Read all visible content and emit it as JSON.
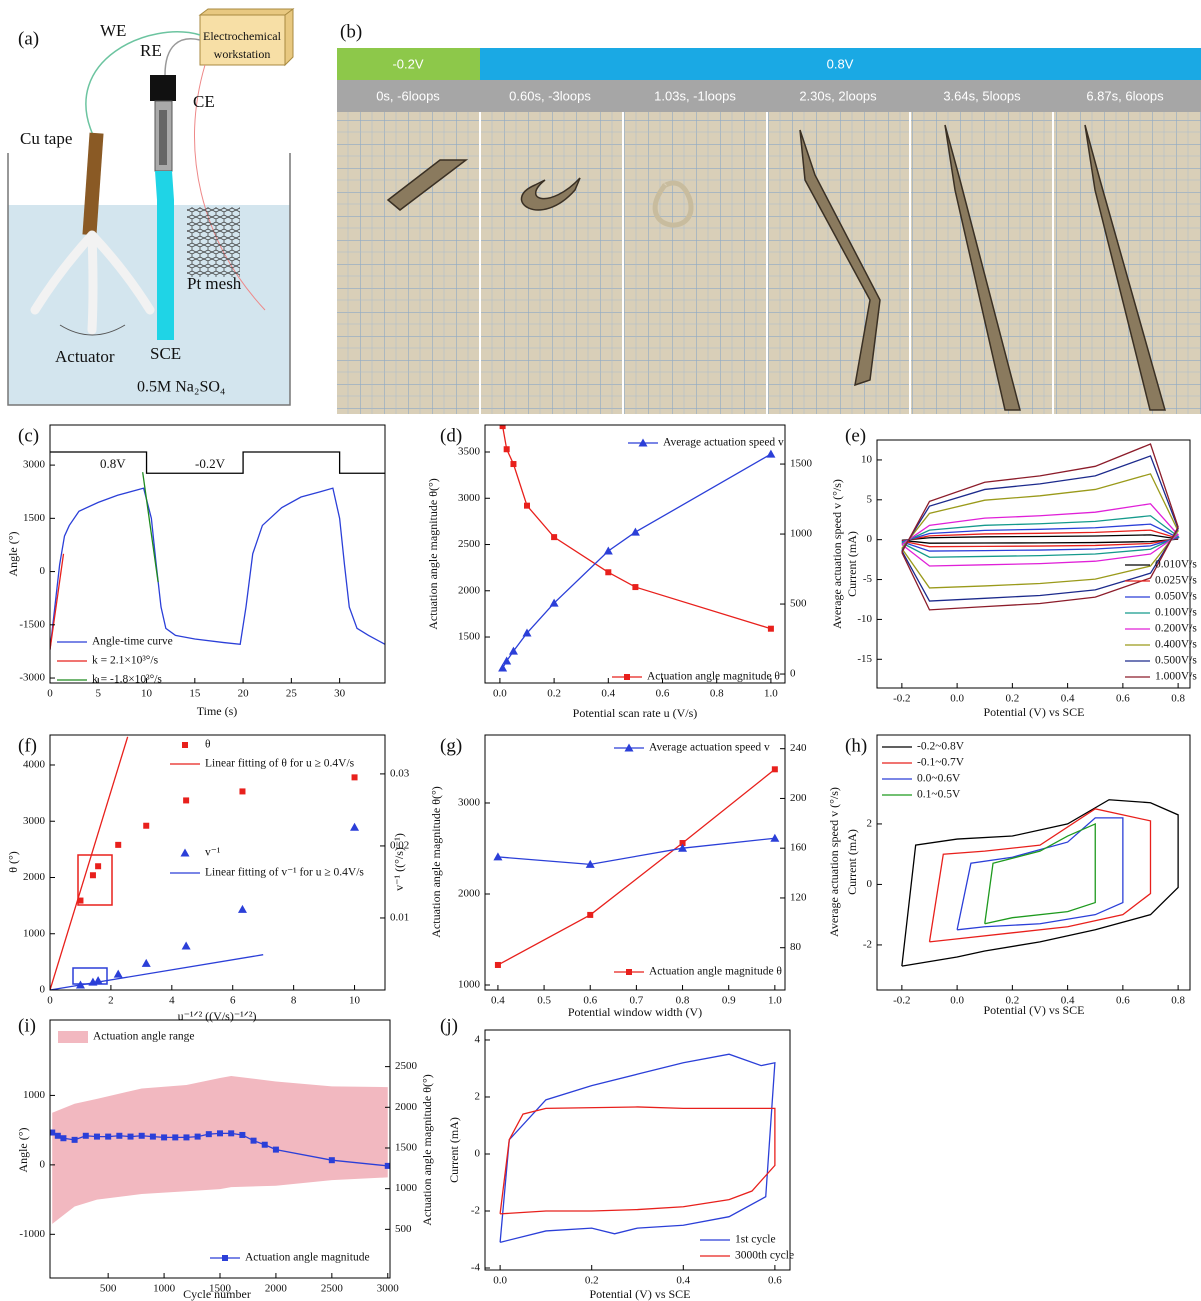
{
  "diagram_a": {
    "panel": "(a)",
    "we": "WE",
    "re": "RE",
    "ce": "CE",
    "workstation": [
      "Electrochemical",
      "workstation"
    ],
    "cu_tape": "Cu tape",
    "pt_mesh": "Pt mesh",
    "actuator": "Actuator",
    "sce": "SCE",
    "electrolyte": "0.5M Na₂SO₄"
  },
  "photo_b": {
    "panel": "(b)",
    "potentials": [
      "-0.2V",
      "0.8V"
    ],
    "frames": [
      "0s, -6loops",
      "0.60s, -3loops",
      "1.03s, -1loops",
      "2.30s, 2loops",
      "3.64s, 5loops",
      "6.87s, 6loops"
    ]
  },
  "chart_data": [
    {
      "type": "line",
      "panel": "(c)",
      "xlabel": "Time (s)",
      "ylabel": "Angle (°)",
      "annotations": [
        "0.8V",
        "-0.2V"
      ],
      "xlim": [
        0,
        34.7
      ],
      "ylim": [
        -3140,
        4130
      ],
      "xticks": [
        0,
        5,
        10,
        15,
        20,
        25,
        30
      ],
      "yticks": [
        -3000,
        -1500,
        0,
        1500,
        3000
      ],
      "series": [
        {
          "color": "#000000",
          "mode": "lines",
          "x": [
            0,
            10,
            10,
            20,
            20,
            30,
            30,
            34.7
          ],
          "values": [
            3370,
            3370,
            2770,
            2770,
            3370,
            3370,
            2770,
            2770
          ]
        },
        {
          "name": "Angle-time curve",
          "color": "#2b3fd8",
          "mode": "lines",
          "x": [
            0,
            0.5,
            1,
            1.5,
            2,
            3,
            5,
            7,
            9,
            9.7,
            10.5,
            11,
            11.5,
            12,
            13,
            15,
            18,
            19.7,
            20.3,
            21,
            22,
            24,
            26,
            28,
            29.3,
            30,
            30.5,
            31,
            31.8,
            33,
            34.7
          ],
          "values": [
            -2200,
            -1000,
            200,
            1000,
            1300,
            1700,
            1950,
            2150,
            2300,
            2350,
            1500,
            200,
            -1000,
            -1600,
            -1800,
            -1900,
            -2000,
            -2050,
            -1000,
            500,
            1300,
            1800,
            2100,
            2250,
            2350,
            1500,
            200,
            -1000,
            -1600,
            -1800,
            -2050
          ]
        },
        {
          "name": "k = 2.1×10³°/s",
          "color": "#e8201c",
          "mode": "lines",
          "x": [
            0,
            1.4
          ],
          "values": [
            -2200,
            500
          ]
        },
        {
          "name": "k = -1.8×10³°/s",
          "color": "#1e8a1e",
          "mode": "lines",
          "x": [
            9.6,
            11.2
          ],
          "values": [
            2800,
            -300
          ]
        }
      ]
    },
    {
      "type": "line",
      "panel": "(d)",
      "xlabel": "Potential scan rate u (V/s)",
      "ylabel": "Actuation angle magnitude θ(°)",
      "y2label": "Average actuation speed v (°/s)",
      "xlim": [
        -0.055,
        1.052
      ],
      "ylim": [
        1003,
        3792
      ],
      "y2lim": [
        -64,
        1779
      ],
      "xticks": [
        {
          "value": 0,
          "label": "0.0"
        },
        0.2,
        0.4,
        0.6,
        0.8,
        {
          "value": 1,
          "label": "1.0"
        }
      ],
      "yticks": [
        1500,
        2000,
        2500,
        3000,
        3500
      ],
      "y2ticks": [
        0,
        500,
        1000,
        1500
      ],
      "x": [
        0.01,
        0.025,
        0.05,
        0.1,
        0.2,
        0.4,
        0.5,
        1.0
      ],
      "series": [
        {
          "name": "Actuation angle magnitude θ",
          "color": "#e8201c",
          "mode": "lines+markers",
          "marker": "square",
          "values": [
            3780,
            3530,
            3370,
            2920,
            2580,
            2200,
            2040,
            1590
          ]
        },
        {
          "name": "Average actuation speed v",
          "color": "#2b3fd8",
          "mode": "lines+markers",
          "marker": "triangle",
          "axis": "y2",
          "values": [
            43,
            93,
            164,
            293,
            507,
            879,
            1014,
            1571
          ]
        }
      ]
    },
    {
      "type": "line",
      "panel": "(e)",
      "xlabel": "Potential (V) vs SCE",
      "ylabel": "Current (mA)",
      "xlim": [
        -0.29,
        0.843
      ],
      "ylim": [
        -18.6,
        12.5
      ],
      "xticks": [
        -0.2,
        {
          "value": 0,
          "label": "0.0"
        },
        0.2,
        0.4,
        0.6,
        0.8
      ],
      "yticks": [
        -15,
        -10,
        -5,
        0,
        5,
        10
      ],
      "x": [
        -0.2,
        -0.1,
        0.1,
        0.3,
        0.5,
        0.7,
        0.8,
        0.7,
        0.5,
        0.3,
        0.1,
        -0.1,
        -0.2
      ],
      "series": [
        {
          "name": "0.010V/s",
          "color": "#000000",
          "mode": "lines",
          "values": [
            -0.08,
            0.24,
            0.36,
            0.4,
            0.46,
            0.6,
            0.08,
            -0.24,
            -0.36,
            -0.4,
            -0.42,
            -0.44,
            -0.08
          ]
        },
        {
          "name": "0.025V/s",
          "color": "#e8201c",
          "mode": "lines",
          "values": [
            -0.16,
            0.48,
            0.72,
            0.8,
            0.92,
            1.2,
            0.16,
            -0.48,
            -0.72,
            -0.8,
            -0.84,
            -0.88,
            -0.16
          ]
        },
        {
          "name": "0.050V/s",
          "color": "#2b3fd8",
          "mode": "lines",
          "values": [
            -0.26,
            0.78,
            1.17,
            1.3,
            1.5,
            1.95,
            0.26,
            -0.78,
            -1.17,
            -1.3,
            -1.37,
            -1.43,
            -0.26
          ]
        },
        {
          "name": "0.100V/s",
          "color": "#159a8c",
          "mode": "lines",
          "values": [
            -0.4,
            1.2,
            1.8,
            2,
            2.3,
            3,
            0.4,
            -1.2,
            -1.8,
            -2,
            -2.1,
            -2.2,
            -0.4
          ]
        },
        {
          "name": "0.200V/s",
          "color": "#e020d8",
          "mode": "lines",
          "values": [
            -0.6,
            1.8,
            2.7,
            3,
            3.45,
            4.5,
            0.6,
            -1.8,
            -2.7,
            -3,
            -3.15,
            -3.3,
            -0.6
          ]
        },
        {
          "name": "0.400V/s",
          "color": "#9a9a1a",
          "mode": "lines",
          "values": [
            -1.1,
            3.3,
            4.95,
            5.5,
            6.3,
            8.25,
            1.1,
            -3.3,
            -4.95,
            -5.5,
            -5.8,
            -6.05,
            -1.1
          ]
        },
        {
          "name": "0.500V/s",
          "color": "#1c2a8c",
          "mode": "lines",
          "values": [
            -1.4,
            4.2,
            6.3,
            7,
            8,
            10.5,
            1.4,
            -4.2,
            -6.3,
            -7,
            -7.35,
            -7.7,
            -1.4
          ]
        },
        {
          "name": "1.000V/s",
          "color": "#8c1c2a",
          "mode": "lines",
          "values": [
            -1.6,
            4.8,
            7.2,
            8,
            9.2,
            12,
            1.6,
            -4.8,
            -7.2,
            -8,
            -8.4,
            -8.8,
            -1.6
          ]
        }
      ]
    },
    {
      "type": "scatter",
      "panel": "(f)",
      "xlabel": "u⁻¹ᐟ² ((V/s)⁻¹ᐟ²)",
      "ylabel": "θ (°)",
      "y2label": "v⁻¹ ((°/s)⁻¹)",
      "xlim": [
        0,
        11
      ],
      "ylim": [
        0,
        4533
      ],
      "y2lim": [
        0,
        0.0354
      ],
      "xticks": [
        0,
        2,
        4,
        6,
        8,
        10
      ],
      "yticks": [
        0,
        1000,
        2000,
        3000,
        4000
      ],
      "y2ticks": [
        0.01,
        0.02,
        0.03
      ],
      "x": [
        10,
        6.32,
        4.47,
        3.16,
        2.24,
        1.58,
        1.41,
        1.0
      ],
      "series": [
        {
          "name": "θ",
          "color": "#e8201c",
          "mode": "markers",
          "marker": "square",
          "values": [
            3780,
            3530,
            3370,
            2920,
            2580,
            2200,
            2040,
            1590
          ]
        },
        {
          "name": "Linear fitting of θ for u ≥ 0.4V/s",
          "color": "#e8201c",
          "mode": "lines",
          "x": [
            0,
            2.55
          ],
          "values": [
            0,
            4500
          ]
        },
        {
          "name": "v⁻¹",
          "color": "#2b3fd8",
          "mode": "markers",
          "marker": "triangle",
          "axis": "y2",
          "values": [
            0.0226,
            0.0112,
            0.0061,
            0.0037,
            0.0022,
            0.0013,
            0.0011,
            0.0007
          ]
        },
        {
          "name": "Linear fitting of v⁻¹ for u ≥ 0.4V/s",
          "color": "#2b3fd8",
          "mode": "lines",
          "axis": "y2",
          "x": [
            0,
            7
          ],
          "values": [
            0,
            0.0049
          ]
        }
      ]
    },
    {
      "type": "line",
      "panel": "(g)",
      "xlabel": "Potential window width (V)",
      "ylabel": "Actuation angle magnitude θ(°)",
      "y2label": "Average actuation speed v (°/s)",
      "xlim": [
        0.372,
        1.022
      ],
      "ylim": [
        945,
        3747
      ],
      "y2lim": [
        46,
        251
      ],
      "xticks": [
        0.4,
        0.5,
        0.6,
        0.7,
        0.8,
        0.9,
        {
          "value": 1,
          "label": "1.0"
        }
      ],
      "yticks": [
        1000,
        2000,
        3000
      ],
      "y2ticks": [
        80,
        120,
        160,
        200,
        240
      ],
      "x": [
        0.4,
        0.6,
        0.8,
        1.0
      ],
      "series": [
        {
          "name": "Actuation angle magnitude θ",
          "color": "#e8201c",
          "mode": "lines+markers",
          "marker": "square",
          "values": [
            1220,
            1770,
            2560,
            3370
          ]
        },
        {
          "name": "Average actuation speed v",
          "color": "#2b3fd8",
          "mode": "lines+markers",
          "marker": "triangle",
          "axis": "y2",
          "values": [
            153,
            147,
            160,
            168
          ]
        }
      ]
    },
    {
      "type": "line",
      "panel": "(h)",
      "xlabel": "Potential (V) vs SCE",
      "ylabel": "Current (mA)",
      "xlim": [
        -0.29,
        0.843
      ],
      "ylim": [
        -3.49,
        4.94
      ],
      "xticks": [
        -0.2,
        {
          "value": 0,
          "label": "0.0"
        },
        0.2,
        0.4,
        0.6,
        0.8
      ],
      "yticks": [
        -2,
        0,
        2
      ],
      "series": [
        {
          "name": "-0.2~0.8V",
          "color": "#000000",
          "mode": "lines",
          "x": [
            -0.2,
            -0.15,
            0,
            0.2,
            0.4,
            0.55,
            0.7,
            0.8,
            0.8,
            0.7,
            0.5,
            0.3,
            0.1,
            0,
            -0.2
          ],
          "values": [
            -2.7,
            1.3,
            1.5,
            1.6,
            2.0,
            2.8,
            2.7,
            2.3,
            -0.1,
            -1.0,
            -1.5,
            -1.9,
            -2.2,
            -2.4,
            -2.7
          ]
        },
        {
          "name": "-0.1~0.7V",
          "color": "#e8201c",
          "mode": "lines",
          "x": [
            -0.1,
            -0.05,
            0.1,
            0.3,
            0.5,
            0.6,
            0.7,
            0.7,
            0.6,
            0.4,
            0.2,
            0,
            -0.1
          ],
          "values": [
            -1.9,
            1.0,
            1.1,
            1.3,
            2.5,
            2.3,
            2.1,
            -0.3,
            -1.0,
            -1.4,
            -1.6,
            -1.8,
            -1.9
          ]
        },
        {
          "name": "0.0~0.6V",
          "color": "#2b3fd8",
          "mode": "lines",
          "x": [
            0,
            0.05,
            0.2,
            0.4,
            0.5,
            0.6,
            0.6,
            0.5,
            0.3,
            0.1,
            0
          ],
          "values": [
            -1.5,
            0.7,
            0.9,
            1.4,
            2.2,
            2.2,
            -0.6,
            -1.0,
            -1.3,
            -1.4,
            -1.5
          ]
        },
        {
          "name": "0.1~0.5V",
          "color": "#1e9a1e",
          "mode": "lines",
          "x": [
            0.1,
            0.13,
            0.3,
            0.4,
            0.5,
            0.5,
            0.4,
            0.2,
            0.1
          ],
          "values": [
            -1.3,
            0.7,
            1.1,
            1.6,
            2.0,
            -0.6,
            -0.9,
            -1.1,
            -1.3
          ]
        }
      ]
    },
    {
      "type": "line",
      "panel": "(i)",
      "xlabel": "Cycle number",
      "ylabel": "Angle (°)",
      "y2label": "Actuation angle magnitude θ(°)",
      "xlim": [
        -20,
        3020
      ],
      "ylim": [
        -1629,
        2086
      ],
      "y2lim": [
        -98,
        3073
      ],
      "xticks": [
        500,
        1000,
        1500,
        2000,
        2500,
        3000
      ],
      "yticks": [
        -1000,
        0,
        1000
      ],
      "y2ticks": [
        500,
        1000,
        1500,
        2000,
        2500
      ],
      "series": [
        {
          "name": "Actuation angle range",
          "color": "#f2b8c0",
          "mode": "area",
          "x": [
            0,
            200,
            400,
            800,
            1200,
            1500,
            1600,
            2000,
            2500,
            3000
          ],
          "upper": [
            750,
            880,
            950,
            1100,
            1150,
            1250,
            1280,
            1200,
            1130,
            1120
          ],
          "lower": [
            -850,
            -600,
            -500,
            -420,
            -380,
            -350,
            -320,
            -300,
            -220,
            -180
          ]
        },
        {
          "name": "Actuation angle magnitude",
          "color": "#2b3fd8",
          "mode": "lines+markers",
          "marker": "square",
          "axis": "y2",
          "x": [
            0,
            50,
            100,
            200,
            300,
            400,
            500,
            600,
            700,
            800,
            900,
            1000,
            1100,
            1200,
            1300,
            1400,
            1500,
            1600,
            1700,
            1800,
            1900,
            2000,
            2500,
            3000
          ],
          "values": [
            1690,
            1650,
            1620,
            1600,
            1650,
            1640,
            1640,
            1650,
            1640,
            1650,
            1640,
            1630,
            1630,
            1630,
            1640,
            1670,
            1680,
            1680,
            1660,
            1590,
            1540,
            1480,
            1350,
            1280
          ]
        }
      ]
    },
    {
      "type": "line",
      "panel": "(j)",
      "xlabel": "Potential (V) vs SCE",
      "ylabel": "Current (mA)",
      "xlim": [
        -0.033,
        0.633
      ],
      "ylim": [
        -4.07,
        4.35
      ],
      "xticks": [
        {
          "value": 0,
          "label": "0.0"
        },
        0.2,
        0.4,
        0.6
      ],
      "yticks": [
        -4,
        -2,
        0,
        2,
        4
      ],
      "series": [
        {
          "name": "1st cycle",
          "color": "#2b3fd8",
          "mode": "lines",
          "x": [
            0,
            0.02,
            0.1,
            0.2,
            0.3,
            0.4,
            0.5,
            0.57,
            0.6,
            0.58,
            0.5,
            0.4,
            0.3,
            0.25,
            0.2,
            0.1,
            0
          ],
          "values": [
            -3.1,
            0.5,
            1.9,
            2.4,
            2.8,
            3.2,
            3.5,
            3.1,
            3.2,
            -1.5,
            -2.2,
            -2.5,
            -2.6,
            -2.8,
            -2.6,
            -2.7,
            -3.1
          ]
        },
        {
          "name": "3000th cycle",
          "color": "#e8201c",
          "mode": "lines",
          "x": [
            0,
            0.02,
            0.05,
            0.1,
            0.3,
            0.4,
            0.5,
            0.6,
            0.6,
            0.55,
            0.5,
            0.4,
            0.3,
            0.2,
            0.1,
            0
          ],
          "values": [
            -2.1,
            0.5,
            1.4,
            1.6,
            1.65,
            1.6,
            1.6,
            1.6,
            -0.4,
            -1.3,
            -1.6,
            -1.85,
            -1.95,
            -2.0,
            -2.0,
            -2.1
          ]
        }
      ]
    }
  ]
}
